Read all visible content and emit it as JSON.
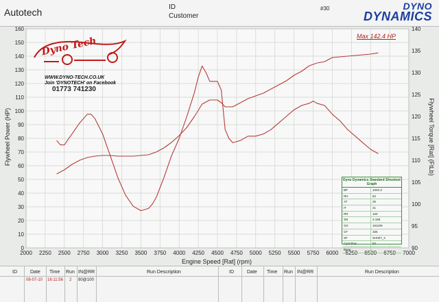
{
  "header": {
    "title": "Autotech",
    "id_label": "ID",
    "customer_label": "Customer",
    "report_number": "#30"
  },
  "brand": {
    "line1": "DYNO",
    "line2": "DYNAMICS"
  },
  "logo": {
    "text": "Dyno Tech",
    "website": "WWW.DYNO-TECH.CO.UK",
    "facebook": "Join 'DYNOTECH' on Facebook",
    "phone": "01773 741230"
  },
  "max_power_label": "Max 142.4 HP",
  "info_box": {
    "title": "Dyno Dynamics Standard Shootout Graph",
    "rows": [
      {
        "k": "BP",
        "v": "1003.3"
      },
      {
        "k": "RH",
        "v": "52"
      },
      {
        "k": "AT",
        "v": "25"
      },
      {
        "k": "IT",
        "v": "21"
      },
      {
        "k": "RR",
        "v": "100"
      },
      {
        "k": "SN",
        "v": "3.168"
      },
      {
        "k": "GS",
        "v": "161106"
      },
      {
        "k": "CF",
        "v": "335"
      },
      {
        "k": "SF",
        "v": "SH007_4"
      },
      {
        "k": "Cyst Prec",
        "v": "82"
      },
      {
        "k": "Base",
        "v": ""
      }
    ]
  },
  "footer": {
    "columns": [
      "ID",
      "Date",
      "Time",
      "Run",
      "IN@RR",
      "Run Description",
      "ID",
      "Date",
      "Time",
      "Run",
      "IN@RR",
      "Run Description"
    ],
    "row": {
      "id": "",
      "date": "08-07-10",
      "time": "16:11:56",
      "run": "2",
      "inrr": "80@100",
      "desc": ""
    }
  },
  "colors": {
    "curve": "#b63a3a",
    "grid": "#cfd4cf",
    "brand": "#1b3fa0",
    "accent": "#b02020"
  },
  "chart_data": {
    "type": "line",
    "xlabel": "Engine Speed [Rat] (rpm)",
    "ylabel_left": "Flywheel Power (HP)",
    "ylabel_right": "Flywheel Torque [Rat] (FtLb)",
    "xlim": [
      2000,
      7000
    ],
    "ylim_left": [
      0,
      160
    ],
    "ylim_right": [
      90,
      140
    ],
    "x_ticks": [
      2000,
      2250,
      2500,
      2750,
      3000,
      3250,
      3500,
      3750,
      4000,
      4250,
      4500,
      4750,
      5000,
      5250,
      5500,
      5750,
      6000,
      6250,
      6500,
      6750,
      7000
    ],
    "y_ticks_left": [
      0,
      10,
      20,
      30,
      40,
      50,
      60,
      70,
      80,
      90,
      100,
      110,
      120,
      130,
      140,
      150,
      160
    ],
    "y_ticks_right": [
      90,
      95,
      100,
      105,
      110,
      115,
      120,
      125,
      130,
      135,
      140
    ],
    "grid": true,
    "series": [
      {
        "name": "Power",
        "axis": "left",
        "x": [
          2400,
          2500,
          2600,
          2700,
          2800,
          2900,
          3000,
          3100,
          3200,
          3300,
          3400,
          3500,
          3600,
          3700,
          3800,
          3900,
          4000,
          4100,
          4200,
          4300,
          4400,
          4500,
          4550,
          4600,
          4700,
          4800,
          4900,
          5000,
          5100,
          5200,
          5300,
          5400,
          5500,
          5600,
          5700,
          5800,
          5900,
          6000,
          6100,
          6200,
          6300,
          6400,
          6500,
          6600
        ],
        "values": [
          54,
          57,
          61,
          64,
          66,
          67,
          67.5,
          67.5,
          67,
          67,
          67,
          67.5,
          68,
          70,
          73,
          77,
          82,
          88,
          96,
          105,
          108,
          108,
          106,
          103,
          103,
          106,
          109,
          111,
          113,
          116,
          119,
          122,
          126,
          129,
          133,
          135,
          136,
          139,
          139.5,
          140,
          140.5,
          141,
          141.5,
          142.4
        ]
      },
      {
        "name": "Torque",
        "axis": "right",
        "x": [
          2400,
          2450,
          2500,
          2600,
          2700,
          2800,
          2850,
          2900,
          3000,
          3100,
          3200,
          3300,
          3400,
          3500,
          3600,
          3650,
          3700,
          3800,
          3900,
          4000,
          4100,
          4200,
          4250,
          4300,
          4350,
          4400,
          4500,
          4550,
          4600,
          4650,
          4700,
          4800,
          4900,
          5000,
          5100,
          5200,
          5300,
          5400,
          5500,
          5600,
          5700,
          5750,
          5800,
          5900,
          6000,
          6100,
          6200,
          6300,
          6400,
          6500,
          6600
        ],
        "values": [
          114.5,
          113.5,
          113.5,
          116,
          118.5,
          120.5,
          120.5,
          119.5,
          116,
          111,
          106,
          102,
          99.5,
          98.5,
          99,
          100,
          101.5,
          106,
          111,
          115,
          120,
          125.5,
          129,
          131.5,
          130,
          128,
          128,
          126,
          117,
          115,
          114,
          114.5,
          115.5,
          115.5,
          116,
          117,
          118.5,
          120,
          121.5,
          122.5,
          123,
          123.5,
          123,
          122.5,
          120.5,
          119,
          117,
          115.5,
          114,
          112.5,
          111.5
        ]
      }
    ]
  }
}
